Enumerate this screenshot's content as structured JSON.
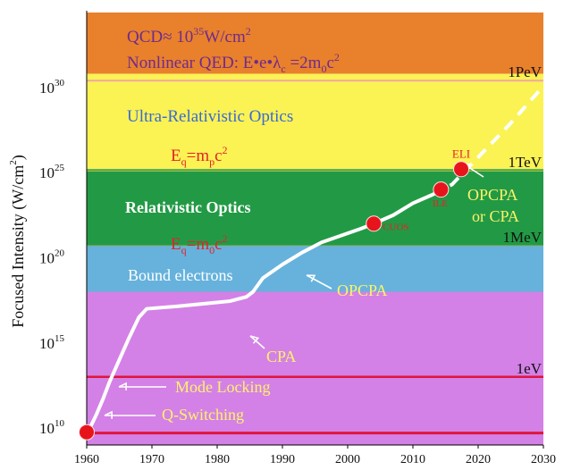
{
  "chart_data": {
    "type": "line",
    "title": "",
    "xlabel": "",
    "ylabel": "Focused Intensity (W/cm²)",
    "xlim": [
      1960,
      2030
    ],
    "ylim": [
      8.9,
      34.3
    ],
    "x_ticks": [
      1960,
      1970,
      1980,
      1990,
      2000,
      2010,
      2020,
      2030
    ],
    "y_ticks": [
      {
        "value": 10,
        "mant": "10",
        "exp": "10"
      },
      {
        "value": 15,
        "mant": "10",
        "exp": "15"
      },
      {
        "value": 20,
        "mant": "10",
        "exp": "20"
      },
      {
        "value": 25,
        "mant": "10",
        "exp": "25"
      },
      {
        "value": 30,
        "mant": "10",
        "exp": "30"
      }
    ],
    "regions": [
      {
        "name": "QCD / Nonlinear QED",
        "from": 30.7,
        "to": 34.3,
        "color": "#e9802c"
      },
      {
        "name": "Ultra-Relativistic Optics",
        "from": 25.1,
        "to": 30.7,
        "color": "#fbf254"
      },
      {
        "name": "Relativistic Optics",
        "from": 20.6,
        "to": 25.1,
        "color": "#229a45"
      },
      {
        "name": "Bound electrons",
        "from": 17.9,
        "to": 20.6,
        "color": "#66b2dc"
      },
      {
        "name": "",
        "from": 8.9,
        "to": 17.9,
        "color": "#d381e6"
      }
    ],
    "energy_lines": [
      {
        "label": "1PeV",
        "y": 30.3,
        "color": "#f0a8a0",
        "width": 2
      },
      {
        "label": "1TeV",
        "y": 25.0,
        "color": "#d4c84a",
        "width": 1
      },
      {
        "label": "1MeV",
        "y": 20.6,
        "color": "#8ab06a",
        "width": 1
      },
      {
        "label": "1eV",
        "y": 12.9,
        "color": "#e0143c",
        "width": 2.5
      },
      {
        "label": "",
        "y": 9.6,
        "color": "#e0143c",
        "width": 3
      }
    ],
    "series": [
      {
        "style": "solid",
        "color": "#ffffff",
        "x": [
          1960.5,
          1961.5,
          1962.5,
          1963.5,
          1965,
          1966.5,
          1968,
          1969.2,
          1974,
          1978,
          1982,
          1984.5,
          1985.5,
          1987,
          1990,
          1993,
          1996,
          1999,
          2002,
          2004,
          2007,
          2010,
          2013
        ],
        "y": [
          9.9,
          10.7,
          11.6,
          12.6,
          13.9,
          15.2,
          16.4,
          16.9,
          17.05,
          17.2,
          17.35,
          17.6,
          17.9,
          18.7,
          19.5,
          20.2,
          20.8,
          21.2,
          21.6,
          21.9,
          22.4,
          23.1,
          23.6
        ]
      },
      {
        "style": "dashed",
        "color": "#ffffff",
        "x": [
          2013,
          2016,
          2019,
          2022,
          2025,
          2029.8
        ],
        "y": [
          23.6,
          24.2,
          25.4,
          26.6,
          27.8,
          29.9
        ]
      }
    ],
    "points": [
      {
        "label": "",
        "x": 1960,
        "y": 9.65
      },
      {
        "label": "CUOS",
        "x": 2004,
        "y": 21.9
      },
      {
        "label": "ILE",
        "x": 2014.3,
        "y": 23.9
      },
      {
        "label": "ELI",
        "x": 2017.4,
        "y": 25.1
      }
    ],
    "annotations": {
      "qcd": {
        "base": "QCD",
        "approx": "≈",
        "mant": "10",
        "exp": "35",
        "unit": "W/cm",
        "unit_exp": "2"
      },
      "qed": {
        "prefix": "Nonlinear QED: E",
        "bullet": "•",
        "e": "e",
        "lambda": "λ",
        "lambda_sub": "c",
        "equals": " =2m",
        "m_sub": "0",
        "c": "c",
        "c_exp": "2"
      },
      "ultra": "Ultra-Relativistic Optics",
      "eq_p": {
        "E": "E",
        "sub": "q",
        "rhs": "=m",
        "m_sub": "p",
        "c": "c",
        "c_exp": "2"
      },
      "relativistic": "Relativistic Optics",
      "eq_0": {
        "E": "E",
        "sub": "q",
        "rhs": "=m",
        "m_sub": "0",
        "c": "c",
        "c_exp": "2"
      },
      "bound": "Bound electrons",
      "opcpa": "OPCPA",
      "cpa": "CPA",
      "mode_locking": "Mode Locking",
      "q_switching": "Q-Switching",
      "opcpa_or_cpa_1": "OPCPA",
      "opcpa_or_cpa_2": "or CPA"
    },
    "colors": {
      "annotation_yellow": "#fef26a",
      "annotation_red": "#e4222a",
      "annotation_purple": "#6e2b8c",
      "annotation_blue": "#3a6ad2",
      "point_fill": "#e8141c"
    }
  }
}
